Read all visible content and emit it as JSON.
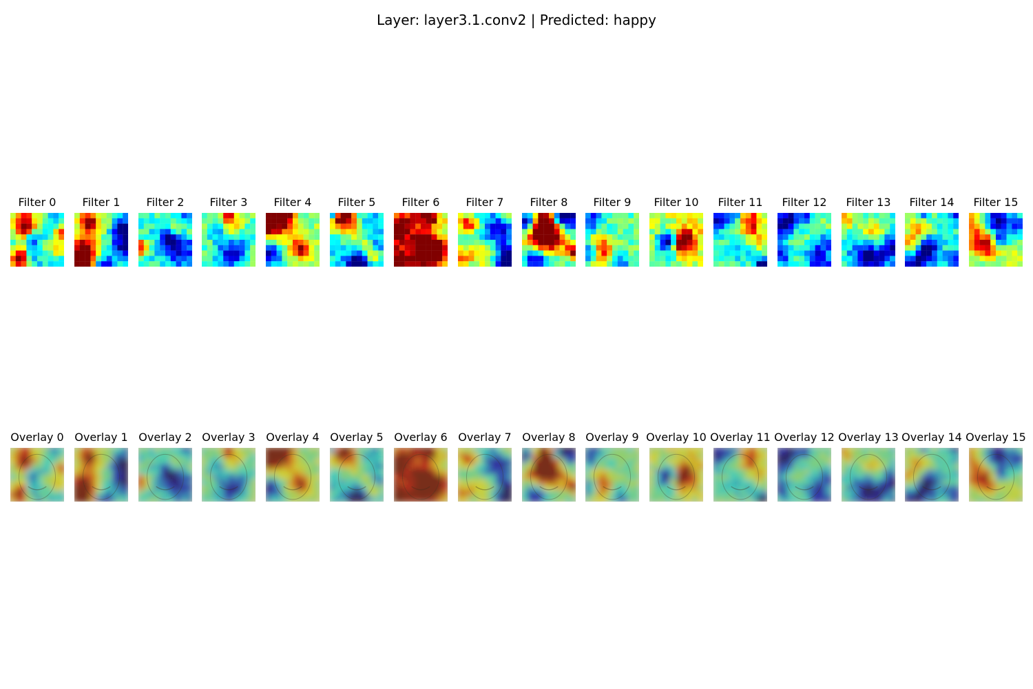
{
  "figure": {
    "title": "Layer: layer3.1.conv2 | Predicted: happy"
  },
  "colormap": "jet",
  "filters": [
    {
      "label": "Filter 0"
    },
    {
      "label": "Filter 1"
    },
    {
      "label": "Filter 2"
    },
    {
      "label": "Filter 3"
    },
    {
      "label": "Filter 4"
    },
    {
      "label": "Filter 5"
    },
    {
      "label": "Filter 6"
    },
    {
      "label": "Filter 7"
    },
    {
      "label": "Filter 8"
    },
    {
      "label": "Filter 9"
    },
    {
      "label": "Filter 10"
    },
    {
      "label": "Filter 11"
    },
    {
      "label": "Filter 12"
    },
    {
      "label": "Filter 13"
    },
    {
      "label": "Filter 14"
    },
    {
      "label": "Filter 15"
    }
  ],
  "overlays": [
    {
      "label": "Overlay 0"
    },
    {
      "label": "Overlay 1"
    },
    {
      "label": "Overlay 2"
    },
    {
      "label": "Overlay 3"
    },
    {
      "label": "Overlay 4"
    },
    {
      "label": "Overlay 5"
    },
    {
      "label": "Overlay 6"
    },
    {
      "label": "Overlay 7"
    },
    {
      "label": "Overlay 8"
    },
    {
      "label": "Overlay 9"
    },
    {
      "label": "Overlay 10"
    },
    {
      "label": "Overlay 11"
    },
    {
      "label": "Overlay 12"
    },
    {
      "label": "Overlay 13"
    },
    {
      "label": "Overlay 14"
    },
    {
      "label": "Overlay 15"
    }
  ]
}
